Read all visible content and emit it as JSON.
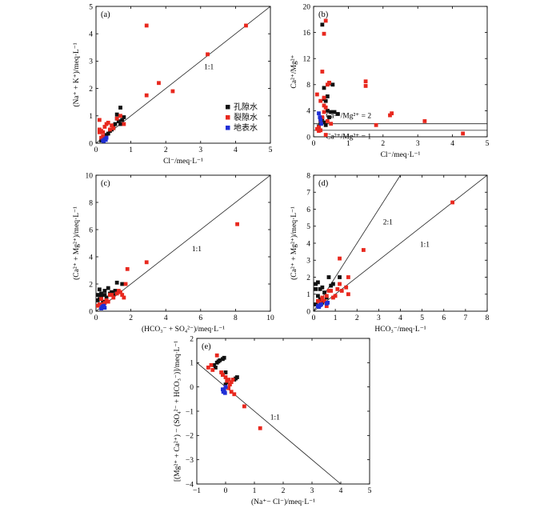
{
  "colors": {
    "pore": "#111111",
    "fissure": "#e8281e",
    "surface": "#1f2fd6",
    "axis": "#000000",
    "guide": "#222222"
  },
  "legend": [
    "孔隙水",
    "裂隙水",
    "地表水"
  ],
  "chart_data": [
    {
      "type": "scatter",
      "panel_label": "(a)",
      "xlabel": "Cl⁻/meq·L⁻¹",
      "ylabel": "(Na⁺ + K⁺)/meq·L⁻¹",
      "xlim": [
        0,
        5
      ],
      "ylim": [
        0,
        5
      ],
      "xticks": [
        0,
        1,
        2,
        3,
        4,
        5
      ],
      "yticks": [
        0,
        1,
        2,
        3,
        4,
        5
      ],
      "xtick_labels": [
        "0",
        "1",
        "2",
        "3",
        "4",
        "5"
      ],
      "ytick_labels": [
        "0",
        "1",
        "2",
        "3",
        "4",
        "5"
      ],
      "lines": [
        {
          "label": "1:1",
          "points": [
            [
              0,
              0
            ],
            [
              5,
              5
            ]
          ],
          "label_at": [
            3.1,
            2.7
          ]
        }
      ],
      "legend_items": [
        "孔隙水",
        "裂隙水",
        "地表水"
      ],
      "series": [
        {
          "name": "孔隙水",
          "color": "#111111",
          "x": [
            0.7,
            0.75,
            0.8,
            0.6,
            0.55,
            0.5,
            0.5,
            0.4,
            0.35,
            0.3,
            0.3,
            0.25,
            0.2,
            0.2,
            0.15,
            0.6,
            0.65,
            0.7,
            0.45
          ],
          "y": [
            1.3,
            0.85,
            0.95,
            0.9,
            0.7,
            0.65,
            0.55,
            0.45,
            0.35,
            0.3,
            0.25,
            0.2,
            0.15,
            0.2,
            0.1,
            1.05,
            0.8,
            0.7,
            0.5
          ]
        },
        {
          "name": "裂隙水",
          "color": "#e8281e",
          "x": [
            1.45,
            4.3,
            3.2,
            2.2,
            1.8,
            1.45,
            0.1,
            0.15,
            0.3,
            0.35,
            0.25,
            0.2,
            0.5,
            0.45,
            0.7,
            0.6,
            0.3,
            0.2,
            0.15,
            0.8,
            0.1,
            0.4,
            0.1
          ],
          "y": [
            4.3,
            4.3,
            3.25,
            1.9,
            2.2,
            1.75,
            0.85,
            0.45,
            0.7,
            0.75,
            0.6,
            0.4,
            0.55,
            0.65,
            1.0,
            0.9,
            0.2,
            0.25,
            0.2,
            0.7,
            0.4,
            0.5,
            0.5
          ]
        },
        {
          "name": "地表水",
          "color": "#1f2fd6",
          "x": [
            0.2,
            0.25,
            0.3,
            0.28,
            0.22
          ],
          "y": [
            0.1,
            0.15,
            0.2,
            0.12,
            0.08
          ]
        }
      ]
    },
    {
      "type": "scatter",
      "panel_label": "(b)",
      "xlabel": "Cl⁻/meq·L⁻¹",
      "ylabel": "Ca²⁺/Mg²⁺",
      "xlim": [
        0,
        5
      ],
      "ylim": [
        0,
        20
      ],
      "xticks": [
        0,
        1,
        2,
        3,
        4,
        5
      ],
      "yticks": [
        0,
        4,
        8,
        12,
        16,
        20
      ],
      "xtick_labels": [
        "0",
        "1",
        "2",
        "3",
        "4",
        "5"
      ],
      "ytick_labels": [
        "0",
        "4",
        "8",
        "12",
        "16",
        "20"
      ],
      "lines": [
        {
          "label": "Ca²⁺/Mg²⁺ = 2",
          "points": [
            [
              0,
              2
            ],
            [
              5,
              2
            ]
          ],
          "label_at": [
            0.35,
            2.9
          ]
        },
        {
          "label": "Ca²⁺/Mg²⁺ = 1",
          "points": [
            [
              0,
              1
            ],
            [
              5,
              1
            ]
          ],
          "label_at": [
            0.35,
            -0.3
          ]
        }
      ],
      "series": [
        {
          "name": "孔隙水",
          "color": "#111111",
          "x": [
            0.25,
            0.45,
            0.55,
            0.4,
            0.3,
            0.35,
            0.6,
            0.7,
            0.45,
            0.25,
            0.2,
            0.3,
            0.5,
            0.4,
            0.35,
            0.15,
            0.3,
            0.2
          ],
          "y": [
            17.2,
            8.2,
            8.0,
            6.2,
            5.8,
            5.5,
            3.8,
            3.5,
            3.0,
            2.8,
            2.5,
            2.2,
            3.8,
            4.0,
            1.8,
            1.6,
            7.5,
            2.0
          ]
        },
        {
          "name": "裂隙水",
          "color": "#e8281e",
          "x": [
            0.35,
            0.3,
            0.25,
            0.2,
            0.3,
            0.35,
            0.45,
            0.4,
            1.5,
            1.5,
            0.3,
            0.25,
            0.2,
            0.15,
            0.1,
            2.2,
            2.25,
            1.8,
            3.2,
            4.3,
            0.35,
            0.5,
            0.3,
            0.4,
            0.2,
            0.1,
            0.15
          ],
          "y": [
            17.8,
            15.8,
            10.0,
            5.5,
            4.8,
            4.5,
            8.3,
            8.0,
            8.5,
            7.8,
            3.8,
            3.0,
            2.5,
            1.5,
            1.2,
            3.3,
            3.6,
            1.8,
            2.4,
            0.5,
            0.3,
            2.0,
            6.0,
            2.4,
            1.0,
            6.5,
            0.9
          ]
        },
        {
          "name": "地表水",
          "color": "#1f2fd6",
          "x": [
            0.15,
            0.18,
            0.2,
            0.22
          ],
          "y": [
            3.6,
            3.0,
            2.6,
            2.0
          ]
        }
      ]
    },
    {
      "type": "scatter",
      "panel_label": "(c)",
      "xlabel": "(HCO₃⁻ + SO₄²⁻)/meq·L⁻¹",
      "ylabel": "(Ca²⁺ + Mg²⁺)/meq·L⁻¹",
      "xlim": [
        0,
        10
      ],
      "ylim": [
        0,
        10
      ],
      "xticks": [
        0,
        2,
        4,
        6,
        8,
        10
      ],
      "yticks": [
        0,
        2,
        4,
        6,
        8,
        10
      ],
      "xtick_labels": [
        "0",
        "2",
        "4",
        "6",
        "8",
        "10"
      ],
      "ytick_labels": [
        "0",
        "2",
        "4",
        "6",
        "8",
        "10"
      ],
      "lines": [
        {
          "label": "1:1",
          "points": [
            [
              0,
              0
            ],
            [
              10,
              10
            ]
          ],
          "label_at": [
            5.5,
            4.4
          ]
        }
      ],
      "series": [
        {
          "name": "孔隙水",
          "color": "#111111",
          "x": [
            0.1,
            0.2,
            0.3,
            0.5,
            0.7,
            0.9,
            1.0,
            1.2,
            1.5,
            0.3,
            0.4,
            0.6,
            0.8,
            0.2,
            0.5,
            1.1,
            0.1
          ],
          "y": [
            1.2,
            0.9,
            1.3,
            1.5,
            1.7,
            1.4,
            1.2,
            2.1,
            2.0,
            1.1,
            0.7,
            1.0,
            1.3,
            1.6,
            1.2,
            1.5,
            0.8
          ]
        },
        {
          "name": "裂隙水",
          "color": "#e8281e",
          "x": [
            8.1,
            2.9,
            1.8,
            1.7,
            1.5,
            1.4,
            1.2,
            1.0,
            0.8,
            0.6,
            0.5,
            0.3,
            0.2,
            0.4,
            0.7,
            1.3,
            1.6,
            0.9,
            0.1
          ],
          "y": [
            6.4,
            3.6,
            3.1,
            2.0,
            1.2,
            1.4,
            1.3,
            1.0,
            1.2,
            0.8,
            0.6,
            0.9,
            0.5,
            0.5,
            0.7,
            1.5,
            1.0,
            1.2,
            0.4
          ]
        },
        {
          "name": "地表水",
          "color": "#1f2fd6",
          "x": [
            0.3,
            0.35,
            0.4,
            0.45,
            0.5
          ],
          "y": [
            0.2,
            0.3,
            0.35,
            0.4,
            0.25
          ]
        }
      ]
    },
    {
      "type": "scatter",
      "panel_label": "(d)",
      "xlabel": "HCO₃⁻/meq·L⁻¹",
      "ylabel": "(Ca²⁺ + Mg²⁺)/meq·L⁻¹",
      "xlim": [
        0,
        8
      ],
      "ylim": [
        0,
        8
      ],
      "xticks": [
        0,
        1,
        2,
        3,
        4,
        5,
        6,
        7,
        8
      ],
      "yticks": [
        0,
        1,
        2,
        3,
        4,
        5,
        6,
        7,
        8
      ],
      "xtick_labels": [
        "0",
        "1",
        "2",
        "3",
        "4",
        "5",
        "6",
        "7",
        "8"
      ],
      "ytick_labels": [
        "0",
        "1",
        "2",
        "3",
        "4",
        "5",
        "6",
        "7",
        "8"
      ],
      "lines": [
        {
          "label": "2:1",
          "points": [
            [
              0,
              0
            ],
            [
              4,
              8
            ]
          ],
          "label_at": [
            3.2,
            5.1
          ]
        },
        {
          "label": "1:1",
          "points": [
            [
              0,
              0
            ],
            [
              8,
              8
            ]
          ],
          "label_at": [
            4.9,
            3.8
          ]
        }
      ],
      "series": [
        {
          "name": "孔隙水",
          "color": "#111111",
          "x": [
            0.1,
            0.2,
            0.3,
            0.1,
            0.4,
            0.5,
            0.7,
            0.9,
            1.2,
            0.2,
            0.3,
            0.6,
            0.8,
            0.1,
            0.4
          ],
          "y": [
            1.6,
            1.7,
            1.3,
            1.3,
            1.4,
            1.1,
            2.0,
            1.6,
            2.0,
            0.9,
            0.7,
            0.8,
            1.5,
            0.4,
            0.5
          ]
        },
        {
          "name": "裂隙水",
          "color": "#e8281e",
          "x": [
            6.4,
            2.3,
            1.2,
            1.6,
            1.5,
            1.6,
            1.3,
            1.1,
            0.9,
            0.7,
            0.6,
            0.5,
            0.4,
            0.3,
            0.2,
            0.8,
            1.0,
            1.2,
            0.6,
            0.4
          ],
          "y": [
            6.4,
            3.6,
            3.1,
            2.0,
            1.4,
            1.0,
            1.2,
            1.3,
            0.8,
            1.2,
            0.9,
            0.6,
            0.7,
            0.5,
            0.6,
            1.2,
            0.9,
            1.6,
            0.3,
            0.8
          ]
        },
        {
          "name": "地表水",
          "color": "#1f2fd6",
          "x": [
            0.2,
            0.25,
            0.3,
            0.35,
            0.6,
            0.65
          ],
          "y": [
            0.3,
            0.25,
            0.35,
            0.4,
            0.45,
            0.5
          ]
        }
      ]
    },
    {
      "type": "scatter",
      "panel_label": "(e)",
      "xlabel": "(Na⁺− Cl⁻)/meq·L⁻¹",
      "ylabel": "[(Mg²⁺ + Ca²⁺) − (SO₄²⁻ + HCO₃⁻)]/meq·L⁻¹",
      "xlim": [
        -1,
        5
      ],
      "ylim": [
        -4,
        2
      ],
      "xticks": [
        -1,
        0,
        1,
        2,
        3,
        4,
        5
      ],
      "yticks": [
        -4,
        -3,
        -2,
        -1,
        0,
        1,
        2
      ],
      "xtick_labels": [
        "−1",
        "0",
        "1",
        "2",
        "3",
        "4",
        "5"
      ],
      "ytick_labels": [
        "−4",
        "−3",
        "−2",
        "−1",
        "0",
        "1",
        "2"
      ],
      "lines": [
        {
          "label": "1:1",
          "points": [
            [
              -1,
              1
            ],
            [
              4,
              -4
            ]
          ],
          "label_at": [
            1.55,
            -1.35
          ]
        }
      ],
      "series": [
        {
          "name": "孔隙水",
          "color": "#111111",
          "x": [
            -0.4,
            -0.3,
            -0.2,
            -0.1,
            -0.05,
            -0.35,
            -0.25,
            0.0,
            -0.1,
            0.3,
            0.35,
            0.4,
            0.0,
            0.05
          ],
          "y": [
            0.9,
            1.0,
            1.1,
            1.15,
            1.2,
            0.8,
            1.05,
            0.6,
            0.5,
            0.3,
            0.35,
            0.4,
            0.1,
            0.2
          ]
        },
        {
          "name": "裂隙水",
          "color": "#e8281e",
          "x": [
            -0.3,
            -0.5,
            -0.6,
            -0.45,
            -0.15,
            0.0,
            0.1,
            0.2,
            0.15,
            0.0,
            -0.05,
            0.3,
            0.65,
            1.2,
            0.25,
            0.05,
            0.1,
            0.2,
            -0.1
          ],
          "y": [
            1.3,
            0.9,
            0.8,
            0.7,
            0.6,
            0.4,
            0.3,
            0.2,
            0.1,
            0.0,
            -0.1,
            -0.3,
            -0.8,
            -1.7,
            0.3,
            0.25,
            -0.05,
            -0.2,
            0.5
          ]
        },
        {
          "name": "地表水",
          "color": "#1f2fd6",
          "x": [
            -0.1,
            -0.08,
            -0.05,
            -0.02,
            0.0
          ],
          "y": [
            -0.1,
            -0.2,
            -0.15,
            -0.25,
            0.0
          ]
        }
      ]
    }
  ]
}
